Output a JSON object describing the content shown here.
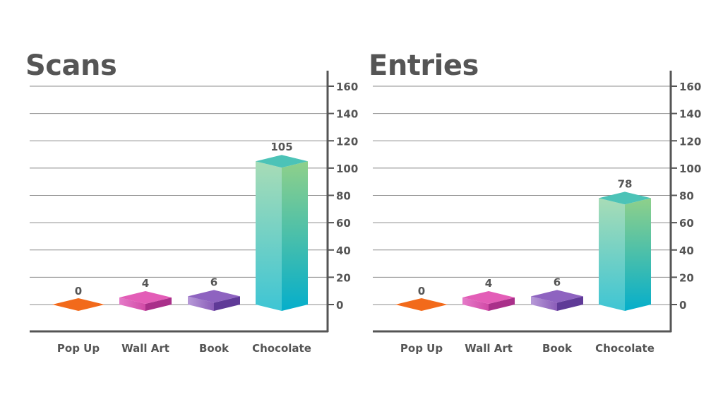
{
  "colors": {
    "text": "#555555",
    "axis": "#555555",
    "grid": "#8c8c8c",
    "pop_up": "#f26a1b",
    "wall_art": "#d14aa6",
    "book": "#8a5cb8",
    "chocolate_top": "#4cc3b7",
    "chocolate_light": "#a6dcb5",
    "chocolate_dark": "#16b0c8"
  },
  "chart_data": [
    {
      "type": "bar",
      "title": "Scans",
      "categories": [
        "Pop Up",
        "Wall Art",
        "Book",
        "Chocolate"
      ],
      "values": [
        0,
        4,
        6,
        105
      ],
      "data_labels": [
        "0",
        "4",
        "6",
        "105"
      ],
      "yticks": [
        "160",
        "140",
        "120",
        "100",
        "80",
        "60",
        "40",
        "20",
        "0"
      ],
      "ylim": [
        0,
        160
      ],
      "grid": true,
      "y_axis_side": "right"
    },
    {
      "type": "bar",
      "title": "Entries",
      "categories": [
        "Pop Up",
        "Wall Art",
        "Book",
        "Chocolate"
      ],
      "values": [
        0,
        4,
        6,
        78
      ],
      "data_labels": [
        "0",
        "4",
        "6",
        "78"
      ],
      "yticks": [
        "160",
        "140",
        "120",
        "100",
        "80",
        "60",
        "40",
        "20",
        "0"
      ],
      "ylim": [
        0,
        160
      ],
      "grid": true,
      "y_axis_side": "right"
    }
  ]
}
